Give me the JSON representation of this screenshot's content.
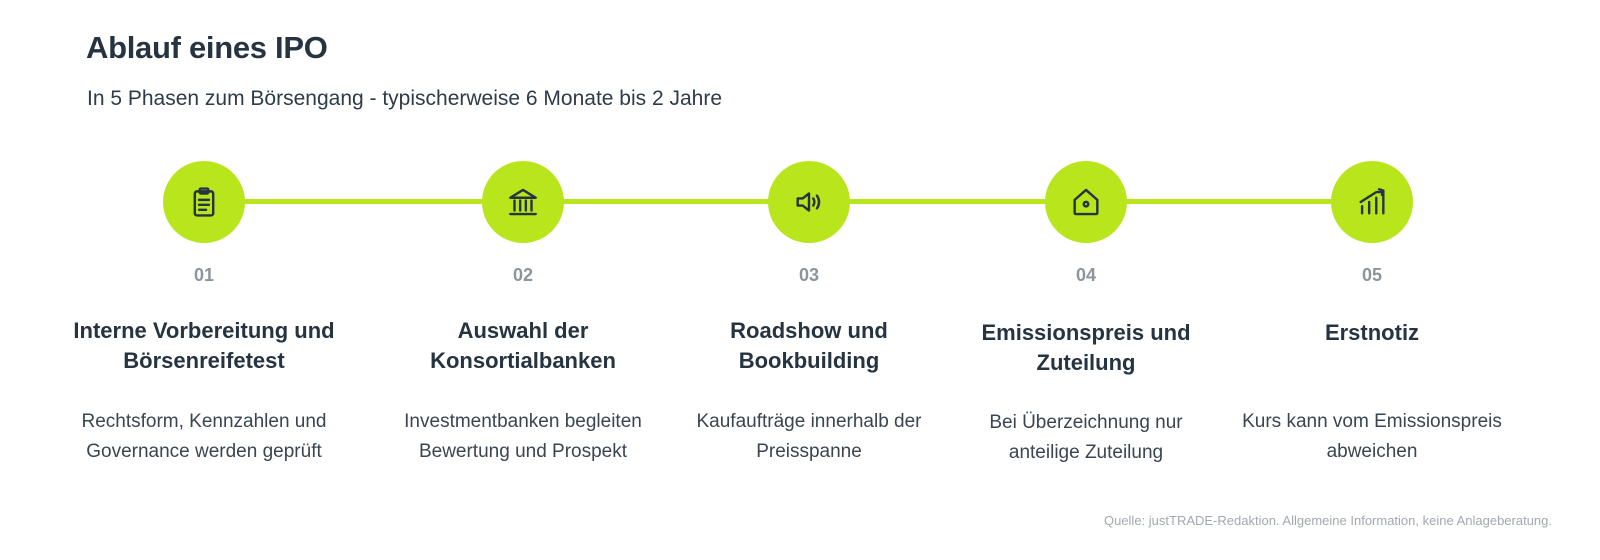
{
  "header": {
    "title": "Ablauf eines IPO",
    "subtitle": "In 5 Phasen zum Börsengang - typischerweise 6 Monate bis 2 Jahre"
  },
  "colors": {
    "accent": "#b8e51b",
    "heading": "#263442",
    "number": "#8d949c",
    "footer": "#a2a8ae"
  },
  "phases": [
    {
      "number": "01",
      "icon": "clipboard-icon",
      "title_lines": [
        "Interne Vorbereitung und",
        "Börsenreifetest"
      ],
      "desc_lines": [
        "Rechtsform, Kennzahlen und",
        "Governance werden geprüft"
      ]
    },
    {
      "number": "02",
      "icon": "bank-icon",
      "title_lines": [
        "Auswahl der",
        "Konsortialbanken"
      ],
      "desc_lines": [
        "Investmentbanken begleiten",
        "Bewertung und Prospekt"
      ]
    },
    {
      "number": "03",
      "icon": "speaker-icon",
      "title_lines": [
        "Roadshow und",
        "Bookbuilding"
      ],
      "desc_lines": [
        "Kaufaufträge innerhalb der",
        "Preisspanne"
      ]
    },
    {
      "number": "04",
      "icon": "price-tag-icon",
      "title_lines": [
        "Emissionspreis und",
        "Zuteilung"
      ],
      "desc_lines": [
        "Bei Überzeichnung nur",
        "anteilige Zuteilung"
      ]
    },
    {
      "number": "05",
      "icon": "trending-up-chart-icon",
      "title_lines": [
        "Erstnotiz"
      ],
      "desc_lines": [
        "Kurs kann vom Emissionspreis",
        "abweichen"
      ]
    }
  ],
  "footer": {
    "source": "Quelle: justTRADE-Redaktion. Allgemeine Information, keine Anlageberatung."
  }
}
